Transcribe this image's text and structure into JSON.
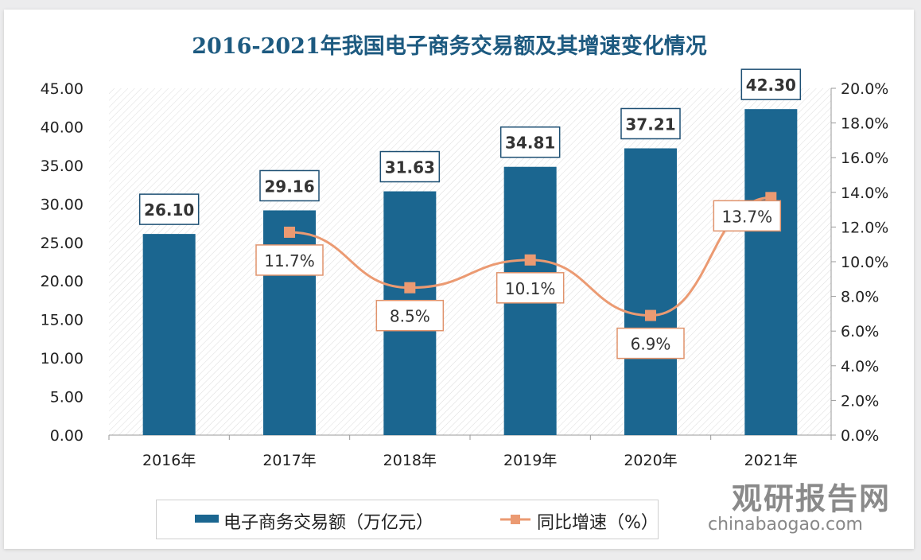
{
  "chart_data": {
    "type": "bar+line",
    "title": "2016-2021年我国电子商务交易额及其增速变化情况",
    "categories": [
      "2016年",
      "2017年",
      "2018年",
      "2019年",
      "2020年",
      "2021年"
    ],
    "series": [
      {
        "name": "电子商务交易额（万亿元）",
        "type": "bar",
        "axis": "left",
        "color": "#1b6690",
        "values": [
          26.1,
          29.16,
          31.63,
          34.81,
          37.21,
          42.3
        ],
        "labels": [
          "26.10",
          "29.16",
          "31.63",
          "34.81",
          "37.21",
          "42.30"
        ]
      },
      {
        "name": "同比增速（%）",
        "type": "line",
        "axis": "right",
        "color": "#eb9a72",
        "values": [
          null,
          11.7,
          8.5,
          10.1,
          6.9,
          13.7
        ],
        "labels": [
          "",
          "11.7%",
          "8.5%",
          "10.1%",
          "6.9%",
          "13.7%"
        ]
      }
    ],
    "y_left": {
      "min": 0,
      "max": 45,
      "step": 5,
      "ticks": [
        "0.00",
        "5.00",
        "10.00",
        "15.00",
        "20.00",
        "25.00",
        "30.00",
        "35.00",
        "40.00",
        "45.00"
      ]
    },
    "y_right": {
      "min": 0,
      "max": 20,
      "step": 2,
      "ticks": [
        "0.0%",
        "2.0%",
        "4.0%",
        "6.0%",
        "8.0%",
        "10.0%",
        "12.0%",
        "14.0%",
        "16.0%",
        "18.0%",
        "20.0%"
      ]
    },
    "grid": false,
    "legend": "bottom"
  },
  "watermark": {
    "name": "观研报告网",
    "url": "chinabaogao.com"
  }
}
